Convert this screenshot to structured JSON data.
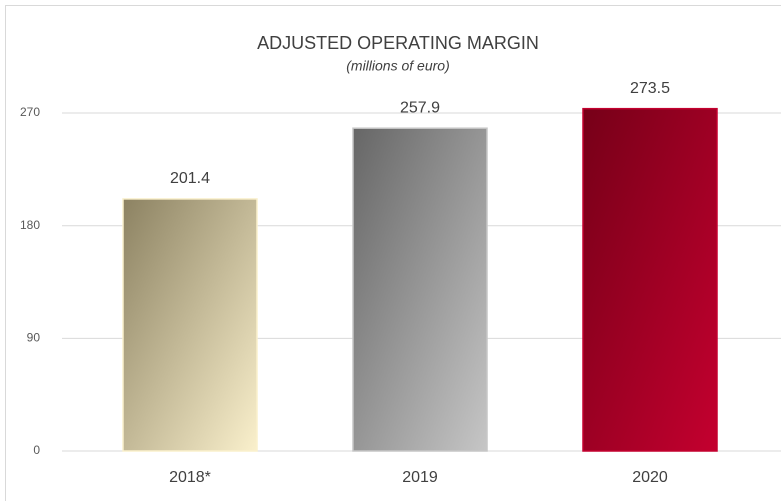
{
  "chart_data": {
    "type": "bar",
    "title": "ADJUSTED OPERATING MARGIN",
    "subtitle": "(millions of euro)",
    "categories": [
      "2018*",
      "2019",
      "2020"
    ],
    "values": [
      201.4,
      257.9,
      273.5
    ],
    "colors": [
      [
        "#8c8262",
        "#faf0cc"
      ],
      [
        "#666666",
        "#c6c6c6"
      ],
      [
        "#760018",
        "#c4002f"
      ]
    ],
    "ylim": [
      0,
      300
    ],
    "yticks": [
      0,
      90,
      180,
      270
    ],
    "grid": true
  }
}
